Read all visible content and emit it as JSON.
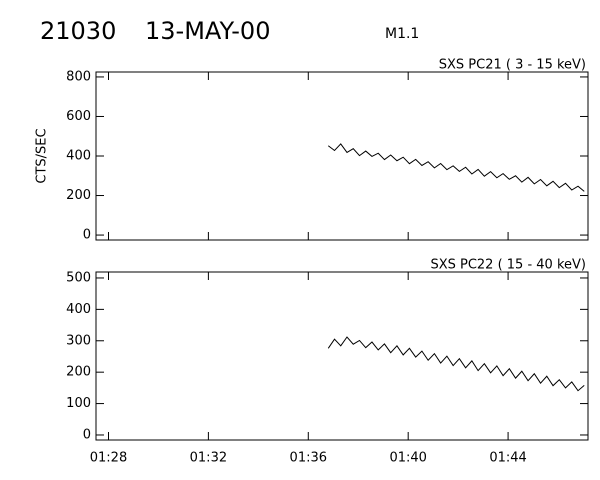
{
  "header": {
    "event": "21030",
    "date": "13-MAY-00",
    "class": "M1.1"
  },
  "chart_data": [
    {
      "type": "line",
      "title": "SXS PC21  (  3 - 15 keV)",
      "ylabel": "CTS/SEC",
      "color": "#000000",
      "x": [
        96.8,
        97.05,
        97.3,
        97.55,
        97.8,
        98.05,
        98.3,
        98.55,
        98.8,
        99.05,
        99.3,
        99.55,
        99.8,
        100.05,
        100.3,
        100.55,
        100.8,
        101.05,
        101.3,
        101.55,
        101.8,
        102.05,
        102.3,
        102.55,
        102.8,
        103.05,
        103.3,
        103.55,
        103.8,
        104.05,
        104.3,
        104.55,
        104.8,
        105.05,
        105.3,
        105.55,
        105.8,
        106.05,
        106.3,
        106.55,
        106.8,
        107.05
      ],
      "values": [
        452,
        428,
        461,
        418,
        437,
        402,
        425,
        398,
        414,
        382,
        405,
        376,
        394,
        361,
        383,
        352,
        371,
        340,
        362,
        331,
        350,
        322,
        343,
        309,
        332,
        298,
        321,
        290,
        311,
        282,
        300,
        268,
        292,
        259,
        281,
        249,
        272,
        240,
        262,
        228,
        247,
        221
      ],
      "xlim": [
        87.5,
        107.2
      ],
      "xticks": [
        88,
        92,
        96,
        100,
        104
      ],
      "ylim": [
        -25,
        825
      ],
      "yticks": [
        0,
        200,
        400,
        600,
        800
      ]
    },
    {
      "type": "line",
      "title": "SXS PC22  ( 15 - 40 keV)",
      "color": "#000000",
      "x": [
        96.8,
        97.05,
        97.3,
        97.55,
        97.8,
        98.05,
        98.3,
        98.55,
        98.8,
        99.05,
        99.3,
        99.55,
        99.8,
        100.05,
        100.3,
        100.55,
        100.8,
        101.05,
        101.3,
        101.55,
        101.8,
        102.05,
        102.3,
        102.55,
        102.8,
        103.05,
        103.3,
        103.55,
        103.8,
        104.05,
        104.3,
        104.55,
        104.8,
        105.05,
        105.3,
        105.55,
        105.8,
        106.05,
        106.3,
        106.55,
        106.8,
        107.05
      ],
      "values": [
        276,
        305,
        284,
        312,
        289,
        301,
        278,
        296,
        271,
        290,
        262,
        284,
        255,
        276,
        248,
        267,
        238,
        259,
        229,
        251,
        221,
        243,
        214,
        236,
        205,
        227,
        198,
        220,
        189,
        211,
        181,
        203,
        173,
        195,
        165,
        187,
        157,
        176,
        150,
        169,
        141,
        158
      ],
      "xlim": [
        87.5,
        107.2
      ],
      "xticks": [
        {
          "value": 88,
          "label": "01:28"
        },
        {
          "value": 92,
          "label": "01:32"
        },
        {
          "value": 96,
          "label": "01:36"
        },
        {
          "value": 100,
          "label": "01:40"
        },
        {
          "value": 104,
          "label": "01:44"
        }
      ],
      "ylim": [
        -16,
        519
      ],
      "yticks": [
        0,
        100,
        200,
        300,
        400,
        500
      ]
    }
  ]
}
